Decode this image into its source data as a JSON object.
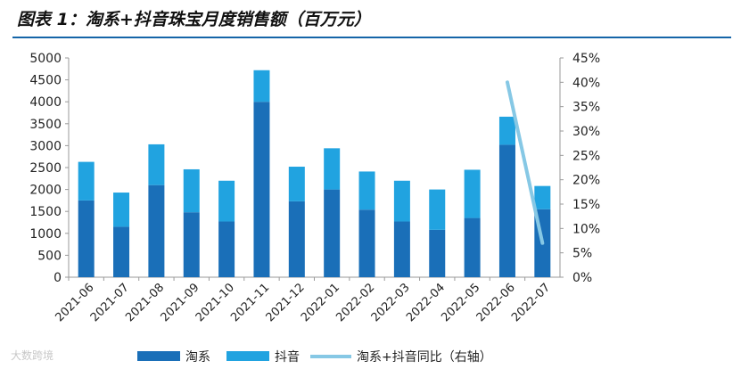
{
  "header": {
    "title": "图表 1：淘系+抖音珠宝月度销售额（百万元）"
  },
  "watermark": {
    "text": "大数跨境"
  },
  "colors": {
    "taoxi": "#1a6fb8",
    "douyin": "#21a3e0",
    "yoy": "#86c8e5",
    "rule": "#1565a8"
  },
  "chart_data": {
    "type": "bar",
    "stacked": true,
    "title": "图表 1：淘系+抖音珠宝月度销售额（百万元）",
    "categories": [
      "2021-06",
      "2021-07",
      "2021-08",
      "2021-09",
      "2021-10",
      "2021-11",
      "2021-12",
      "2022-01",
      "2022-02",
      "2022-03",
      "2022-04",
      "2022-05",
      "2022-06",
      "2022-07"
    ],
    "series": [
      {
        "name": "淘系",
        "axis": "left",
        "values": [
          1750,
          1150,
          2100,
          1480,
          1270,
          4000,
          1730,
          2000,
          1540,
          1270,
          1080,
          1350,
          3020,
          1550
        ]
      },
      {
        "name": "抖音",
        "axis": "left",
        "values": [
          880,
          780,
          930,
          980,
          930,
          720,
          790,
          940,
          870,
          930,
          920,
          1100,
          640,
          530
        ]
      },
      {
        "name": "淘系+抖音同比（右轴）",
        "axis": "right",
        "type": "line",
        "unit": "%",
        "points": [
          {
            "category": "2022-06",
            "value": 40
          },
          {
            "category": "2022-07",
            "value": 7
          }
        ]
      }
    ],
    "left_axis": {
      "min": 0,
      "max": 5000,
      "step": 500,
      "ticks": [
        "0",
        "500",
        "1000",
        "1500",
        "2000",
        "2500",
        "3000",
        "3500",
        "4000",
        "4500",
        "5000"
      ]
    },
    "right_axis": {
      "min": 0,
      "max": 45,
      "step": 5,
      "ticks": [
        "0%",
        "5%",
        "10%",
        "15%",
        "20%",
        "25%",
        "30%",
        "35%",
        "40%",
        "45%"
      ]
    },
    "legend": {
      "position": "bottom",
      "items": [
        {
          "label": "淘系",
          "kind": "bar",
          "color": "#1a6fb8"
        },
        {
          "label": "抖音",
          "kind": "bar",
          "color": "#21a3e0"
        },
        {
          "label": "淘系+抖音同比（右轴）",
          "kind": "line",
          "color": "#86c8e5"
        }
      ]
    },
    "grid": false
  }
}
